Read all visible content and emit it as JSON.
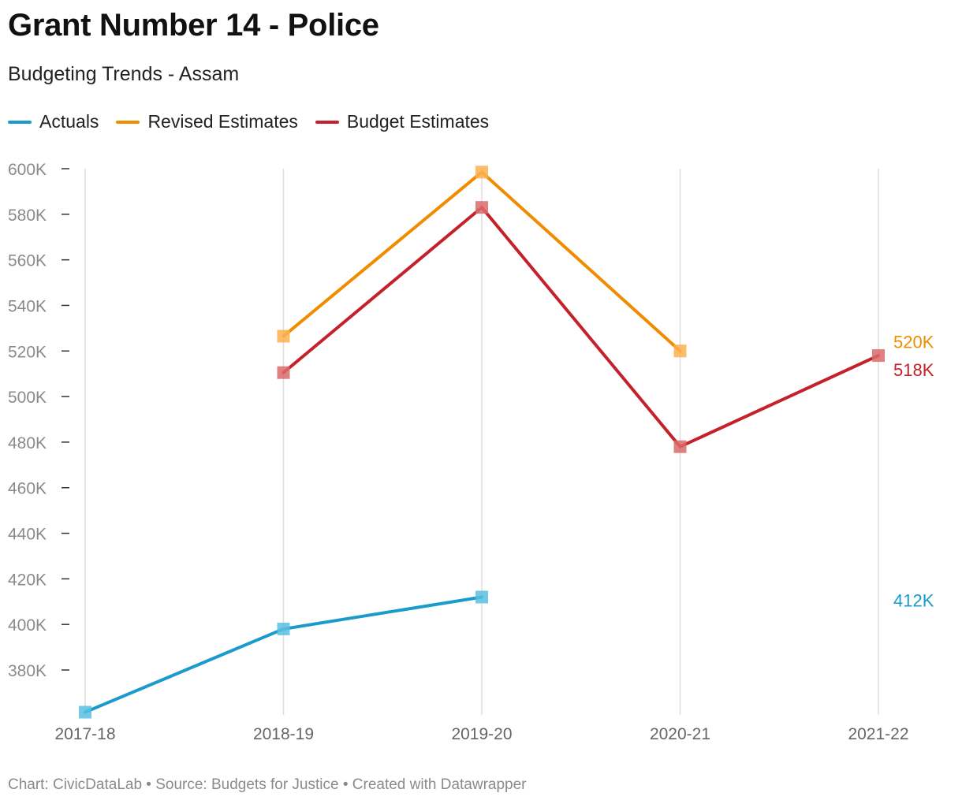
{
  "header": {
    "title": "Grant Number 14 - Police",
    "subtitle": "Budgeting Trends - Assam"
  },
  "footer": {
    "text": "Chart: CivicDataLab • Source: Budgets for Justice • Created with Datawrapper"
  },
  "chart_data": {
    "type": "line",
    "title": "Grant Number 14 - Police",
    "subtitle": "Budgeting Trends - Assam",
    "xlabel": "",
    "ylabel": "",
    "categories": [
      "2017-18",
      "2018-19",
      "2019-20",
      "2020-21",
      "2021-22"
    ],
    "ylim": [
      360000,
      600000
    ],
    "yticks": [
      380000,
      400000,
      420000,
      440000,
      460000,
      480000,
      500000,
      520000,
      540000,
      560000,
      580000,
      600000
    ],
    "ytick_labels": [
      "380K",
      "400K",
      "420K",
      "440K",
      "460K",
      "480K",
      "500K",
      "520K",
      "540K",
      "560K",
      "580K",
      "600K"
    ],
    "grid": "vertical",
    "legend_position": "top-left",
    "series": [
      {
        "name": "Actuals",
        "color": "#1a9bcb",
        "marker_color": "#5bbfe0",
        "values": [
          361500,
          398000,
          412000,
          null,
          null
        ],
        "end_label": "412K"
      },
      {
        "name": "Revised Estimates",
        "color": "#f08c00",
        "marker_color": "#fbb04e",
        "values": [
          null,
          526500,
          598500,
          520000,
          null
        ],
        "end_label": "520K"
      },
      {
        "name": "Budget Estimates",
        "color": "#c4212a",
        "marker_color": "#dc6a6a",
        "values": [
          null,
          510500,
          583000,
          478000,
          518000
        ],
        "end_label": "518K"
      }
    ]
  }
}
